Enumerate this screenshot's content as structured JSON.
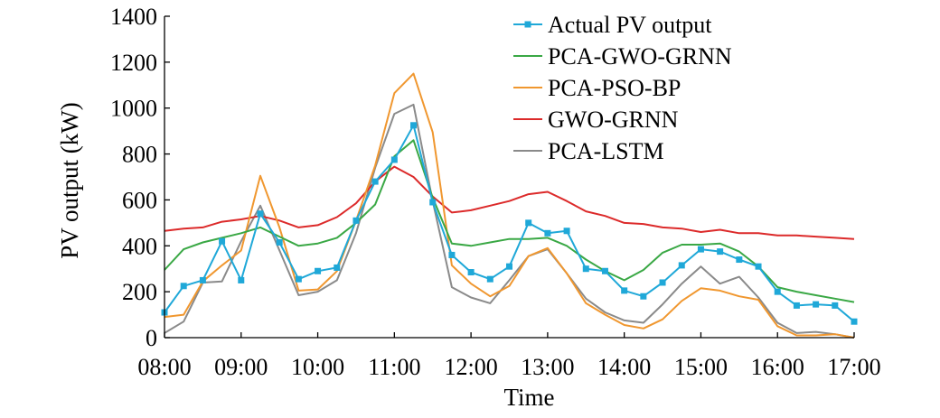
{
  "chart_data": {
    "type": "line",
    "xlabel": "Time",
    "ylabel": "PV output (kW)",
    "ylim": [
      0,
      1400
    ],
    "yticks": [
      0,
      200,
      400,
      600,
      800,
      1000,
      1200,
      1400
    ],
    "xtick_labels": [
      "08:00",
      "09:00",
      "10:00",
      "11:00",
      "12:00",
      "13:00",
      "14:00",
      "15:00",
      "16:00",
      "17:00"
    ],
    "x": [
      "08:00",
      "08:15",
      "08:30",
      "08:45",
      "09:00",
      "09:15",
      "09:30",
      "09:45",
      "10:00",
      "10:15",
      "10:30",
      "10:45",
      "11:00",
      "11:15",
      "11:30",
      "11:45",
      "12:00",
      "12:15",
      "12:30",
      "12:45",
      "13:00",
      "13:15",
      "13:30",
      "13:45",
      "14:00",
      "14:15",
      "14:30",
      "14:45",
      "15:00",
      "15:15",
      "15:30",
      "15:45",
      "16:00",
      "16:15",
      "16:30",
      "16:45",
      "17:00"
    ],
    "legend_position": "top-right",
    "grid": false,
    "series": [
      {
        "name": "Actual PV output",
        "color": "#1fa8d8",
        "marker": "square",
        "values": [
          110,
          225,
          250,
          420,
          250,
          540,
          415,
          255,
          290,
          305,
          510,
          680,
          775,
          925,
          590,
          360,
          285,
          255,
          310,
          500,
          455,
          465,
          300,
          290,
          205,
          180,
          240,
          315,
          385,
          375,
          340,
          310,
          200,
          140,
          145,
          140,
          70
        ]
      },
      {
        "name": "PCA-GWO-GRNN",
        "color": "#3aa845",
        "marker": "none",
        "values": [
          295,
          385,
          415,
          435,
          455,
          480,
          440,
          400,
          410,
          435,
          500,
          580,
          790,
          860,
          610,
          410,
          400,
          415,
          430,
          430,
          435,
          400,
          340,
          290,
          250,
          295,
          370,
          405,
          405,
          410,
          375,
          310,
          220,
          200,
          185,
          170,
          155
        ]
      },
      {
        "name": "PCA-PSO-BP",
        "color": "#f0972f",
        "marker": "none",
        "values": [
          90,
          100,
          245,
          315,
          380,
          705,
          480,
          205,
          210,
          290,
          510,
          750,
          1065,
          1150,
          895,
          315,
          235,
          180,
          225,
          355,
          390,
          280,
          150,
          100,
          55,
          40,
          80,
          160,
          215,
          205,
          180,
          165,
          50,
          10,
          10,
          15,
          0
        ]
      },
      {
        "name": "GWO-GRNN",
        "color": "#dc2a2a",
        "marker": "none",
        "values": [
          465,
          475,
          480,
          505,
          515,
          530,
          510,
          480,
          490,
          525,
          585,
          680,
          745,
          700,
          615,
          545,
          555,
          575,
          595,
          625,
          635,
          595,
          550,
          530,
          500,
          495,
          480,
          475,
          460,
          470,
          455,
          455,
          445,
          445,
          440,
          435,
          430
        ]
      },
      {
        "name": "PCA-LSTM",
        "color": "#8a8a8a",
        "marker": "none",
        "values": [
          20,
          70,
          240,
          245,
          420,
          575,
          380,
          185,
          200,
          250,
          455,
          740,
          975,
          1015,
          595,
          220,
          175,
          150,
          250,
          355,
          385,
          280,
          170,
          110,
          75,
          65,
          145,
          235,
          310,
          235,
          265,
          175,
          65,
          20,
          25,
          15,
          0
        ]
      }
    ]
  }
}
